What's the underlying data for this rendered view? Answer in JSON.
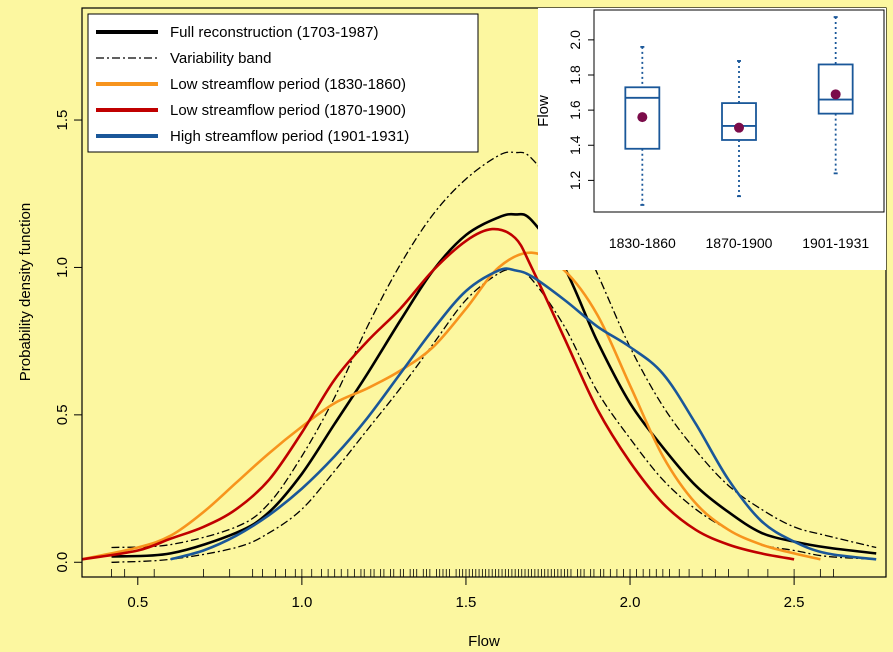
{
  "chart_data": [
    {
      "type": "line",
      "title": "",
      "xlabel": "Flow",
      "ylabel": "Probability density function",
      "xlim": [
        0.33,
        2.78
      ],
      "ylim": [
        -0.05,
        1.88
      ],
      "x_ticks": [
        0.5,
        1.0,
        1.5,
        2.0,
        2.5
      ],
      "x_tick_labels": [
        "0.5",
        "1.0",
        "1.5",
        "2.0",
        "2.5"
      ],
      "y_ticks": [
        0.0,
        0.5,
        1.0,
        1.5
      ],
      "y_tick_labels": [
        "0.0",
        "0.5",
        "1.0",
        "1.5"
      ],
      "legend_position": "top-left",
      "background_color": "#FCF7A0",
      "series": [
        {
          "name": "Full reconstruction (1703-1987)",
          "color": "#000000",
          "style": "solid",
          "points": [
            [
              0.42,
              0.02
            ],
            [
              0.6,
              0.03
            ],
            [
              0.8,
              0.1
            ],
            [
              0.9,
              0.17
            ],
            [
              1.0,
              0.3
            ],
            [
              1.1,
              0.47
            ],
            [
              1.2,
              0.64
            ],
            [
              1.3,
              0.82
            ],
            [
              1.4,
              0.99
            ],
            [
              1.5,
              1.11
            ],
            [
              1.6,
              1.17
            ],
            [
              1.65,
              1.18
            ],
            [
              1.7,
              1.16
            ],
            [
              1.8,
              1.0
            ],
            [
              1.9,
              0.75
            ],
            [
              2.0,
              0.54
            ],
            [
              2.1,
              0.39
            ],
            [
              2.2,
              0.26
            ],
            [
              2.3,
              0.17
            ],
            [
              2.4,
              0.1
            ],
            [
              2.5,
              0.07
            ],
            [
              2.6,
              0.05
            ],
            [
              2.75,
              0.03
            ]
          ]
        },
        {
          "name": "Variability band",
          "color": "#000000",
          "style": "dashdot",
          "points": [
            [
              0.42,
              0.05
            ],
            [
              0.6,
              0.06
            ],
            [
              0.8,
              0.12
            ],
            [
              0.9,
              0.2
            ],
            [
              1.0,
              0.36
            ],
            [
              1.1,
              0.56
            ],
            [
              1.2,
              0.8
            ],
            [
              1.3,
              1.01
            ],
            [
              1.4,
              1.18
            ],
            [
              1.5,
              1.3
            ],
            [
              1.6,
              1.38
            ],
            [
              1.65,
              1.39
            ],
            [
              1.7,
              1.37
            ],
            [
              1.8,
              1.22
            ],
            [
              1.9,
              0.98
            ],
            [
              2.0,
              0.73
            ],
            [
              2.1,
              0.53
            ],
            [
              2.2,
              0.38
            ],
            [
              2.3,
              0.26
            ],
            [
              2.4,
              0.18
            ],
            [
              2.5,
              0.12
            ],
            [
              2.6,
              0.09
            ],
            [
              2.75,
              0.05
            ]
          ]
        },
        {
          "name": "",
          "color": "#000000",
          "style": "dashdot",
          "points": [
            [
              0.42,
              0.0
            ],
            [
              0.6,
              0.01
            ],
            [
              0.8,
              0.05
            ],
            [
              0.9,
              0.1
            ],
            [
              1.0,
              0.18
            ],
            [
              1.1,
              0.31
            ],
            [
              1.2,
              0.45
            ],
            [
              1.3,
              0.59
            ],
            [
              1.4,
              0.74
            ],
            [
              1.5,
              0.89
            ],
            [
              1.6,
              0.98
            ],
            [
              1.65,
              0.99
            ],
            [
              1.7,
              0.96
            ],
            [
              1.8,
              0.8
            ],
            [
              1.9,
              0.58
            ],
            [
              2.0,
              0.42
            ],
            [
              2.1,
              0.28
            ],
            [
              2.2,
              0.18
            ],
            [
              2.3,
              0.11
            ],
            [
              2.4,
              0.06
            ],
            [
              2.5,
              0.04
            ],
            [
              2.6,
              0.02
            ],
            [
              2.75,
              0.01
            ]
          ]
        },
        {
          "name": "Low streamflow period (1830-1860)",
          "color": "#F7941D",
          "style": "solid",
          "points": [
            [
              0.33,
              0.01
            ],
            [
              0.5,
              0.05
            ],
            [
              0.6,
              0.09
            ],
            [
              0.7,
              0.17
            ],
            [
              0.8,
              0.27
            ],
            [
              0.9,
              0.37
            ],
            [
              1.0,
              0.46
            ],
            [
              1.1,
              0.54
            ],
            [
              1.2,
              0.59
            ],
            [
              1.3,
              0.65
            ],
            [
              1.4,
              0.73
            ],
            [
              1.5,
              0.86
            ],
            [
              1.6,
              1.0
            ],
            [
              1.7,
              1.05
            ],
            [
              1.8,
              0.99
            ],
            [
              1.9,
              0.84
            ],
            [
              2.0,
              0.6
            ],
            [
              2.1,
              0.36
            ],
            [
              2.2,
              0.2
            ],
            [
              2.3,
              0.11
            ],
            [
              2.4,
              0.06
            ],
            [
              2.5,
              0.03
            ],
            [
              2.58,
              0.01
            ]
          ]
        },
        {
          "name": "Low streamflow period (1870-1900)",
          "color": "#C00000",
          "style": "solid",
          "points": [
            [
              0.33,
              0.01
            ],
            [
              0.5,
              0.04
            ],
            [
              0.6,
              0.08
            ],
            [
              0.7,
              0.12
            ],
            [
              0.8,
              0.18
            ],
            [
              0.9,
              0.28
            ],
            [
              1.0,
              0.44
            ],
            [
              1.1,
              0.62
            ],
            [
              1.2,
              0.75
            ],
            [
              1.3,
              0.86
            ],
            [
              1.4,
              0.99
            ],
            [
              1.5,
              1.09
            ],
            [
              1.58,
              1.13
            ],
            [
              1.65,
              1.1
            ],
            [
              1.7,
              1.0
            ],
            [
              1.8,
              0.76
            ],
            [
              1.9,
              0.52
            ],
            [
              2.0,
              0.34
            ],
            [
              2.1,
              0.2
            ],
            [
              2.2,
              0.11
            ],
            [
              2.3,
              0.06
            ],
            [
              2.4,
              0.03
            ],
            [
              2.5,
              0.01
            ]
          ]
        },
        {
          "name": "High streamflow period (1901-1931)",
          "color": "#1A5799",
          "style": "solid",
          "points": [
            [
              0.6,
              0.01
            ],
            [
              0.7,
              0.04
            ],
            [
              0.8,
              0.09
            ],
            [
              0.9,
              0.16
            ],
            [
              1.0,
              0.25
            ],
            [
              1.1,
              0.36
            ],
            [
              1.2,
              0.49
            ],
            [
              1.3,
              0.64
            ],
            [
              1.4,
              0.79
            ],
            [
              1.5,
              0.92
            ],
            [
              1.6,
              0.99
            ],
            [
              1.65,
              0.99
            ],
            [
              1.7,
              0.97
            ],
            [
              1.8,
              0.89
            ],
            [
              1.9,
              0.8
            ],
            [
              2.0,
              0.73
            ],
            [
              2.1,
              0.64
            ],
            [
              2.2,
              0.47
            ],
            [
              2.3,
              0.28
            ],
            [
              2.4,
              0.14
            ],
            [
              2.5,
              0.07
            ],
            [
              2.6,
              0.03
            ],
            [
              2.75,
              0.01
            ]
          ]
        }
      ],
      "rug": [
        0.42,
        0.46,
        0.55,
        0.7,
        0.78,
        0.85,
        0.88,
        0.92,
        0.95,
        0.98,
        1.0,
        1.03,
        1.06,
        1.08,
        1.1,
        1.12,
        1.14,
        1.16,
        1.18,
        1.19,
        1.21,
        1.22,
        1.24,
        1.25,
        1.27,
        1.28,
        1.3,
        1.31,
        1.33,
        1.34,
        1.35,
        1.37,
        1.38,
        1.39,
        1.41,
        1.42,
        1.43,
        1.44,
        1.45,
        1.47,
        1.48,
        1.49,
        1.5,
        1.51,
        1.52,
        1.53,
        1.54,
        1.55,
        1.56,
        1.57,
        1.58,
        1.59,
        1.6,
        1.61,
        1.62,
        1.63,
        1.64,
        1.65,
        1.66,
        1.67,
        1.68,
        1.69,
        1.7,
        1.71,
        1.72,
        1.73,
        1.74,
        1.75,
        1.76,
        1.77,
        1.78,
        1.79,
        1.8,
        1.81,
        1.82,
        1.84,
        1.85,
        1.86,
        1.88,
        1.89,
        1.91,
        1.92,
        1.94,
        1.96,
        1.98,
        2.0,
        2.02,
        2.04,
        2.06,
        2.08,
        2.1,
        2.12,
        2.15,
        2.18,
        2.22,
        2.26,
        2.3,
        2.36,
        2.42,
        2.5,
        2.58,
        2.62
      ]
    },
    {
      "type": "box",
      "title": "",
      "xlabel": "",
      "ylabel": "Flow",
      "ylim": [
        1.02,
        2.17
      ],
      "y_ticks": [
        1.2,
        1.4,
        1.6,
        1.8,
        2.0
      ],
      "y_tick_labels": [
        "1.2",
        "1.4",
        "1.6",
        "1.8",
        "2.0"
      ],
      "categories": [
        "1830-1860",
        "1870-1900",
        "1901-1931"
      ],
      "box_color": "#1A5799",
      "mean_color": "#7B0C4A",
      "boxes": [
        {
          "min": 1.06,
          "q1": 1.38,
          "median": 1.67,
          "q3": 1.73,
          "max": 1.96,
          "mean": 1.56
        },
        {
          "min": 1.11,
          "q1": 1.43,
          "median": 1.51,
          "q3": 1.64,
          "max": 1.88,
          "mean": 1.5
        },
        {
          "min": 1.24,
          "q1": 1.58,
          "median": 1.66,
          "q3": 1.86,
          "max": 2.13,
          "mean": 1.69
        }
      ]
    }
  ]
}
